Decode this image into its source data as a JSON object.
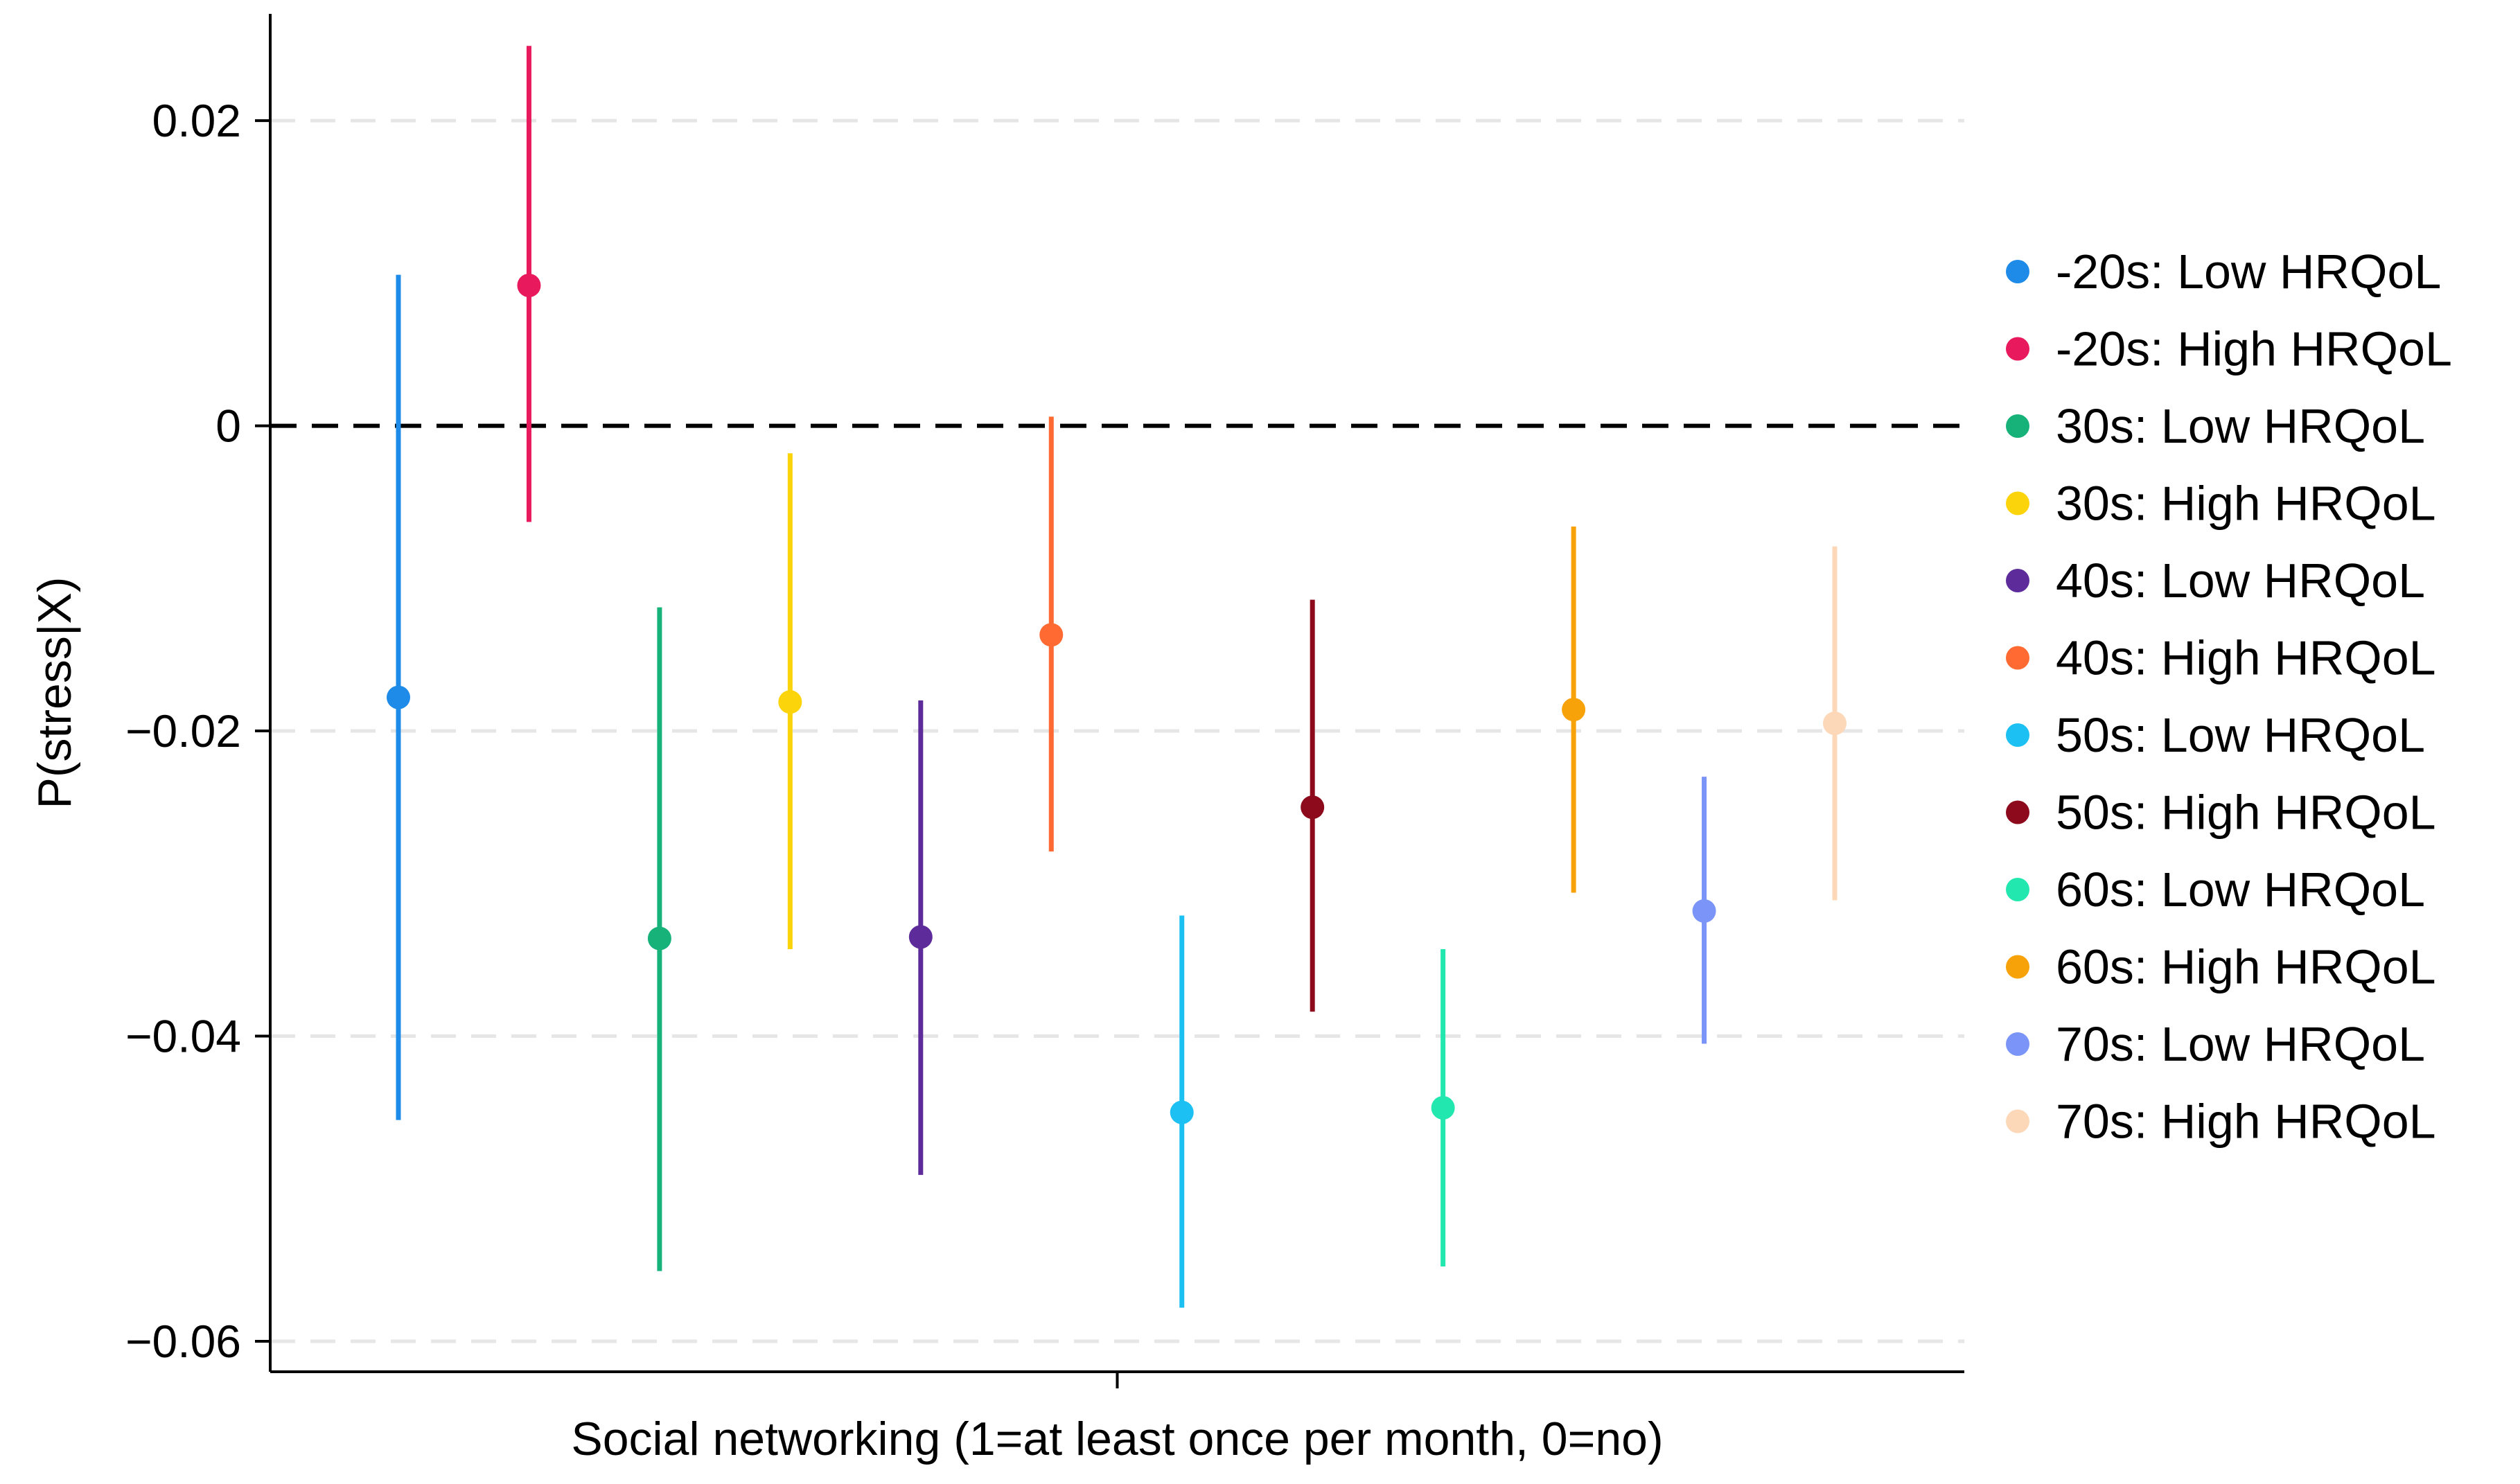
{
  "chart_data": {
    "type": "scatter",
    "subtype": "point-estimate-with-confidence-intervals",
    "title": "",
    "xlabel": "Social networking (1=at least once per month, 0=no)",
    "ylabel": "P(stress|X)",
    "ylim": [
      -0.062,
      0.027
    ],
    "yticks": [
      0.02,
      0,
      -0.02,
      -0.04,
      -0.06
    ],
    "ytick_labels": [
      "0.02",
      "0",
      "−0.02",
      "−0.04",
      "−0.06"
    ],
    "grid": true,
    "reference_line": 0,
    "legend_position": "right",
    "series": [
      {
        "name": "-20s: Low HRQoL",
        "color": "#1f8be8",
        "estimate": -0.0178,
        "ci_low": -0.0455,
        "ci_high": 0.0099
      },
      {
        "name": "-20s: High HRQoL",
        "color": "#e8195c",
        "estimate": 0.0092,
        "ci_low": -0.0063,
        "ci_high": 0.0249
      },
      {
        "name": "30s: Low HRQoL",
        "color": "#16b27a",
        "estimate": -0.0336,
        "ci_low": -0.0554,
        "ci_high": -0.0119
      },
      {
        "name": "30s: High HRQoL",
        "color": "#fcd40c",
        "estimate": -0.0181,
        "ci_low": -0.0343,
        "ci_high": -0.0018
      },
      {
        "name": "40s: Low HRQoL",
        "color": "#5d2c9a",
        "estimate": -0.0335,
        "ci_low": -0.0491,
        "ci_high": -0.018
      },
      {
        "name": "40s: High HRQoL",
        "color": "#ff6a32",
        "estimate": -0.0137,
        "ci_low": -0.0279,
        "ci_high": 0.0006
      },
      {
        "name": "50s: Low HRQoL",
        "color": "#1dc0f2",
        "estimate": -0.045,
        "ci_low": -0.0578,
        "ci_high": -0.0321
      },
      {
        "name": "50s: High HRQoL",
        "color": "#8c0a1c",
        "estimate": -0.025,
        "ci_low": -0.0384,
        "ci_high": -0.0114
      },
      {
        "name": "60s: Low HRQoL",
        "color": "#22e8b0",
        "estimate": -0.0447,
        "ci_low": -0.0551,
        "ci_high": -0.0343
      },
      {
        "name": "60s: High HRQoL",
        "color": "#f8a20a",
        "estimate": -0.0186,
        "ci_low": -0.0306,
        "ci_high": -0.0066
      },
      {
        "name": "70s: Low HRQoL",
        "color": "#7b94f8",
        "estimate": -0.0318,
        "ci_low": -0.0405,
        "ci_high": -0.023
      },
      {
        "name": "70s: High HRQoL",
        "color": "#fcd8b8",
        "estimate": -0.0195,
        "ci_low": -0.0311,
        "ci_high": -0.0079
      }
    ]
  }
}
